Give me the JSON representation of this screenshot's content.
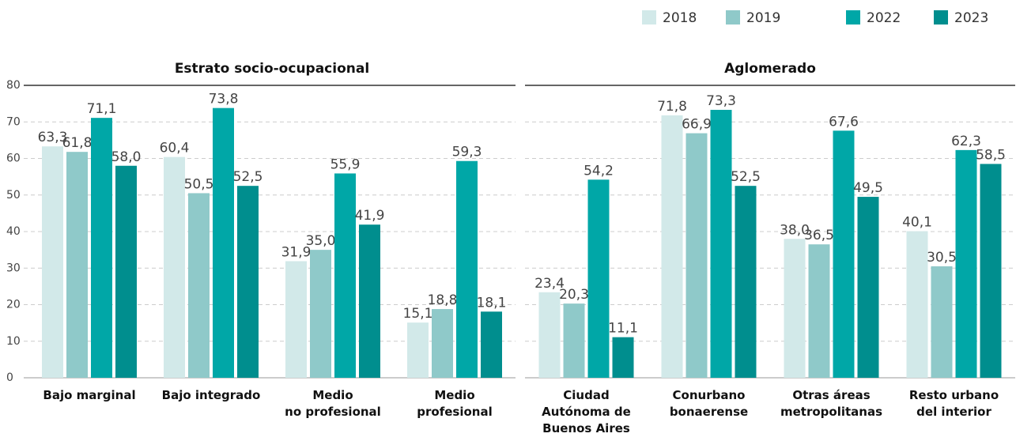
{
  "chart_data": [
    {
      "type": "bar",
      "title": "Estrato socio-ocupacional",
      "categories": [
        "Bajo marginal",
        "Bajo integrado",
        "Medio\nno profesional",
        "Medio\nprofesional"
      ],
      "series": [
        {
          "name": "2018",
          "color": "#d2e9e9",
          "values": [
            63.3,
            60.4,
            31.9,
            15.1
          ],
          "value_labels": [
            "63,3",
            "60,4",
            "31,9",
            "15,1"
          ]
        },
        {
          "name": "2019",
          "color": "#8fc9c9",
          "values": [
            61.8,
            50.5,
            35.0,
            18.8
          ],
          "value_labels": [
            "61,8",
            "50,5",
            "35,0",
            "18,8"
          ]
        },
        {
          "name": "2022",
          "color": "#00a7a7",
          "values": [
            71.1,
            73.8,
            55.9,
            59.3
          ],
          "value_labels": [
            "71,1",
            "73,8",
            "55,9",
            "59,3"
          ]
        },
        {
          "name": "2023",
          "color": "#008e8e",
          "values": [
            58.0,
            52.5,
            41.9,
            18.1
          ],
          "value_labels": [
            "58,0",
            "52,5",
            "41,9",
            "18,1"
          ]
        }
      ],
      "ylim": [
        0,
        80
      ],
      "yticks": [
        0,
        10,
        20,
        30,
        40,
        50,
        60,
        70,
        80
      ],
      "grid": true
    },
    {
      "type": "bar",
      "title": "Aglomerado",
      "categories": [
        "Ciudad\nAutónoma de\nBuenos Aires",
        "Conurbano\nbonaerense",
        "Otras áreas\nmetropolitanas",
        "Resto urbano\ndel interior"
      ],
      "series": [
        {
          "name": "2018",
          "color": "#d2e9e9",
          "values": [
            23.4,
            71.8,
            38.0,
            40.1
          ],
          "value_labels": [
            "23,4",
            "71,8",
            "38,0",
            "40,1"
          ]
        },
        {
          "name": "2019",
          "color": "#8fc9c9",
          "values": [
            20.3,
            66.9,
            36.5,
            30.5
          ],
          "value_labels": [
            "20,3",
            "66,9",
            "36,5",
            "30,5"
          ]
        },
        {
          "name": "2022",
          "color": "#00a7a7",
          "values": [
            54.2,
            73.3,
            67.6,
            62.3
          ],
          "value_labels": [
            "54,2",
            "73,3",
            "67,6",
            "62,3"
          ]
        },
        {
          "name": "2023",
          "color": "#008e8e",
          "values": [
            11.1,
            52.5,
            49.5,
            58.5
          ],
          "value_labels": [
            "11,1",
            "52,5",
            "49,5",
            "58,5"
          ]
        }
      ],
      "ylim": [
        0,
        80
      ],
      "grid": true
    }
  ]
}
